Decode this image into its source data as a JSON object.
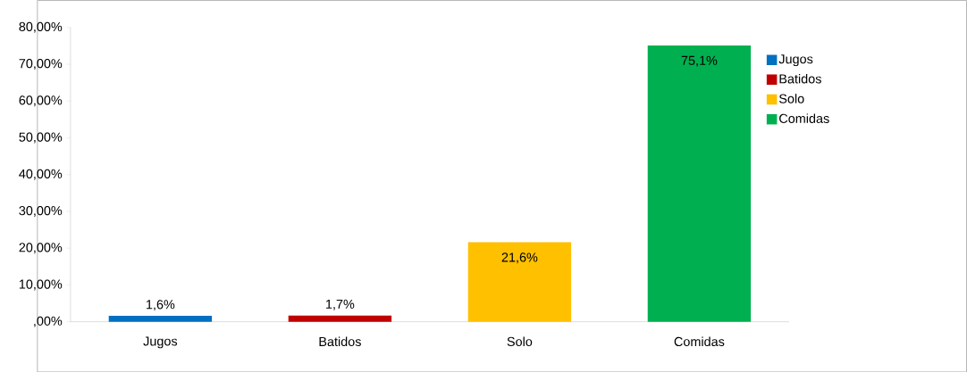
{
  "chart_data": {
    "type": "bar",
    "categories": [
      "Jugos",
      "Batidos",
      "Solo",
      "Comidas"
    ],
    "series": [
      {
        "name": "Jugos",
        "color": "#0070c0",
        "values": [
          1.6,
          null,
          null,
          null
        ],
        "value_labels": [
          "1,6%",
          null,
          null,
          null
        ]
      },
      {
        "name": "Batidos",
        "color": "#c00000",
        "values": [
          null,
          1.7,
          null,
          null
        ],
        "value_labels": [
          null,
          "1,7%",
          null,
          null
        ]
      },
      {
        "name": "Solo",
        "color": "#ffc000",
        "values": [
          null,
          null,
          21.6,
          null
        ],
        "value_labels": [
          null,
          null,
          "21,6%",
          null
        ]
      },
      {
        "name": "Comidas",
        "color": "#00b050",
        "values": [
          null,
          null,
          null,
          75.1
        ],
        "value_labels": [
          null,
          null,
          null,
          "75,1%"
        ]
      }
    ],
    "ylim": [
      0,
      80
    ],
    "yticks": [
      {
        "value": 0,
        "label": ",00%"
      },
      {
        "value": 10,
        "label": "10,00%"
      },
      {
        "value": 20,
        "label": "20,00%"
      },
      {
        "value": 30,
        "label": "30,00%"
      },
      {
        "value": 40,
        "label": "40,00%"
      },
      {
        "value": 50,
        "label": "50,00%"
      },
      {
        "value": 60,
        "label": "60,00%"
      },
      {
        "value": 70,
        "label": "70,00%"
      },
      {
        "value": 80,
        "label": "80,00%"
      }
    ],
    "legend": "right",
    "grid": false
  }
}
